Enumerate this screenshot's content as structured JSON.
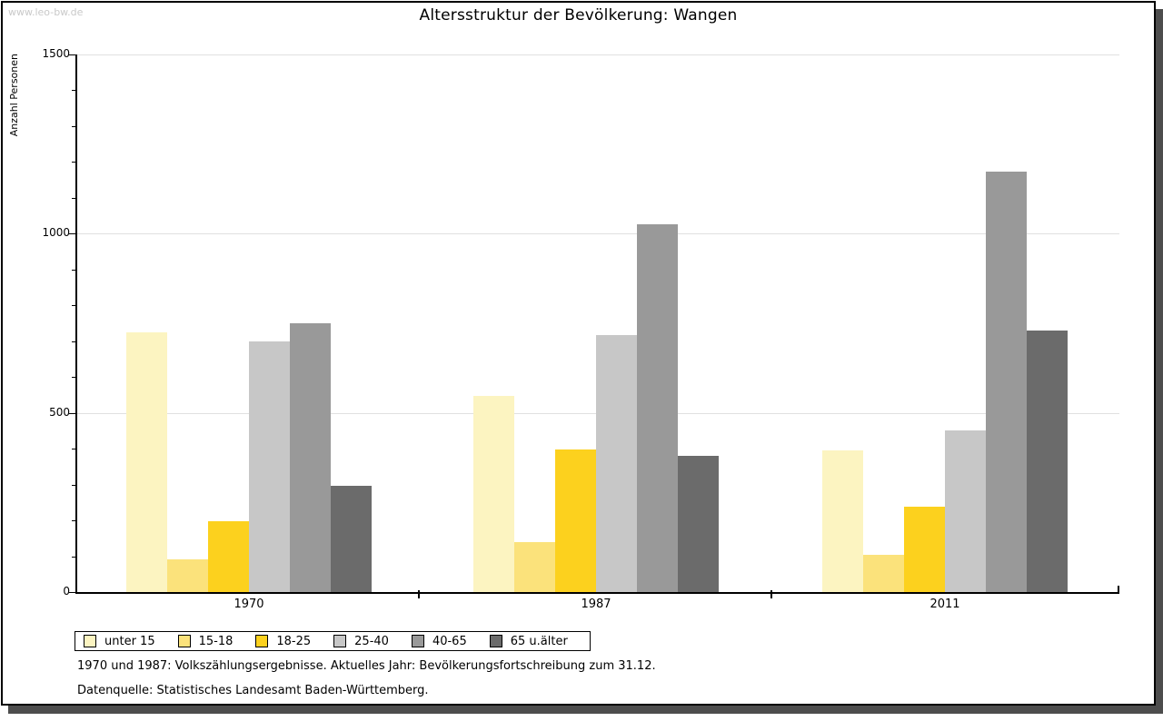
{
  "watermark": "www.leo-bw.de",
  "title": "Altersstruktur der Bevölkerung: Wangen",
  "chart_data": {
    "type": "bar",
    "title": "Altersstruktur der Bevölkerung: Wangen",
    "xlabel": "",
    "ylabel": "Anzahl Personen",
    "ylim": [
      0,
      1500
    ],
    "yticks": [
      0,
      500,
      1000,
      1500
    ],
    "minor_tick_step": 100,
    "grid": true,
    "legend_position": "bottom-left",
    "categories": [
      "1970",
      "1987",
      "2011"
    ],
    "series": [
      {
        "name": "unter 15",
        "color": "#FCF4C1",
        "values": [
          725,
          548,
          396
        ]
      },
      {
        "name": "15-18",
        "color": "#FBE27B",
        "values": [
          90,
          140,
          104
        ]
      },
      {
        "name": "18-25",
        "color": "#FCD11E",
        "values": [
          198,
          398,
          238
        ]
      },
      {
        "name": "25-40",
        "color": "#C7C7C7",
        "values": [
          700,
          717,
          451
        ]
      },
      {
        "name": "40-65",
        "color": "#999999",
        "values": [
          750,
          1026,
          1173
        ]
      },
      {
        "name": "65 u.älter",
        "color": "#6B6B6B",
        "values": [
          297,
          380,
          730
        ]
      }
    ]
  },
  "footnotes": [
    "1970 und 1987: Volkszählungsergebnisse. Aktuelles Jahr: Bevölkerungsfortschreibung zum 31.12.",
    "Datenquelle: Statistisches Landesamt Baden-Württemberg."
  ]
}
